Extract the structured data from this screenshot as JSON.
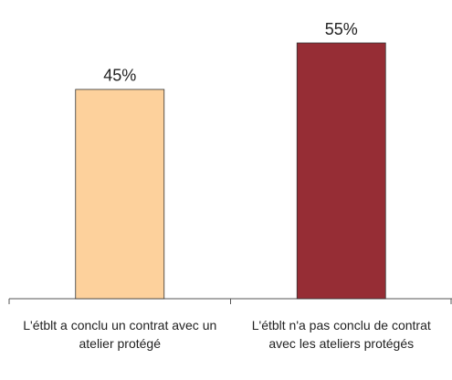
{
  "chart_data": {
    "type": "bar",
    "categories": [
      "L'étblt a conclu un contrat avec un atelier protégé",
      "L'étblt n'a pas conclu de contrat avec les ateliers protégés"
    ],
    "values": [
      45,
      55
    ],
    "value_labels": [
      "45%",
      "55%"
    ],
    "colors": [
      "#fdd19c",
      "#962d35"
    ]
  }
}
